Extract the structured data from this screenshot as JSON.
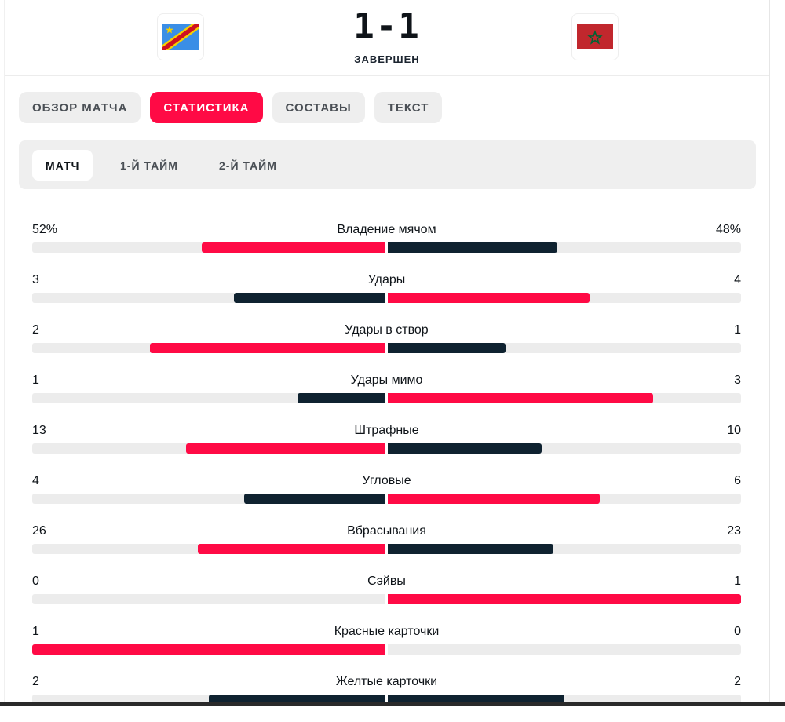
{
  "header": {
    "score": "1-1",
    "status": "ЗАВЕРШЕН",
    "home_flag_icon": "dr-congo-flag-icon",
    "away_flag_icon": "morocco-flag-icon"
  },
  "tabs": [
    {
      "label": "ОБЗОР МАТЧА",
      "active": false
    },
    {
      "label": "СТАТИСТИКА",
      "active": true
    },
    {
      "label": "СОСТАВЫ",
      "active": false
    },
    {
      "label": "ТЕКСТ",
      "active": false
    }
  ],
  "periods": [
    {
      "label": "МАТЧ",
      "active": true
    },
    {
      "label": "1-Й ТАЙМ",
      "active": false
    },
    {
      "label": "2-Й ТАЙМ",
      "active": false
    }
  ],
  "colors": {
    "accent": "#ff0a45",
    "dark": "#0f2230",
    "track": "#ececec"
  },
  "stats": [
    {
      "label": "Владение мячом",
      "left": "52%",
      "right": "48%",
      "left_value": 52,
      "right_value": 48
    },
    {
      "label": "Удары",
      "left": "3",
      "right": "4",
      "left_value": 3,
      "right_value": 4
    },
    {
      "label": "Удары в створ",
      "left": "2",
      "right": "1",
      "left_value": 2,
      "right_value": 1
    },
    {
      "label": "Удары мимо",
      "left": "1",
      "right": "3",
      "left_value": 1,
      "right_value": 3
    },
    {
      "label": "Штрафные",
      "left": "13",
      "right": "10",
      "left_value": 13,
      "right_value": 10
    },
    {
      "label": "Угловые",
      "left": "4",
      "right": "6",
      "left_value": 4,
      "right_value": 6
    },
    {
      "label": "Вбрасывания",
      "left": "26",
      "right": "23",
      "left_value": 26,
      "right_value": 23
    },
    {
      "label": "Сэйвы",
      "left": "0",
      "right": "1",
      "left_value": 0,
      "right_value": 1
    },
    {
      "label": "Красные карточки",
      "left": "1",
      "right": "0",
      "left_value": 1,
      "right_value": 0
    },
    {
      "label": "Желтые карточки",
      "left": "2",
      "right": "2",
      "left_value": 2,
      "right_value": 2
    }
  ]
}
